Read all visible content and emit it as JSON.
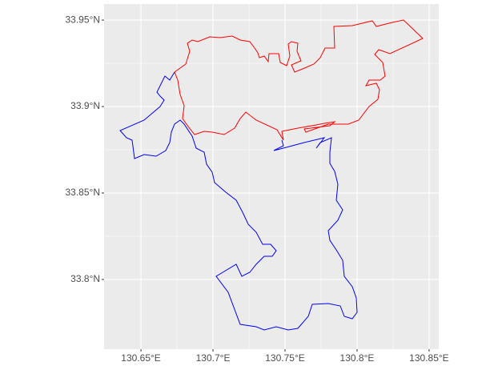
{
  "chart_data": {
    "type": "map",
    "xlim": [
      130.6244,
      130.8567
    ],
    "ylim": [
      33.7597,
      33.9593
    ],
    "xticks": [
      {
        "value": 130.65,
        "label": "130.65°E"
      },
      {
        "value": 130.7,
        "label": "130.7°E"
      },
      {
        "value": 130.75,
        "label": "130.75°E"
      },
      {
        "value": 130.8,
        "label": "130.8°E"
      },
      {
        "value": 130.85,
        "label": "130.85°E"
      }
    ],
    "yticks": [
      {
        "value": 33.8,
        "label": "33.8°N"
      },
      {
        "value": 33.85,
        "label": "33.85°N"
      },
      {
        "value": 33.9,
        "label": "33.9°N"
      },
      {
        "value": 33.95,
        "label": "33.95°N"
      }
    ],
    "grid": true
  }
}
